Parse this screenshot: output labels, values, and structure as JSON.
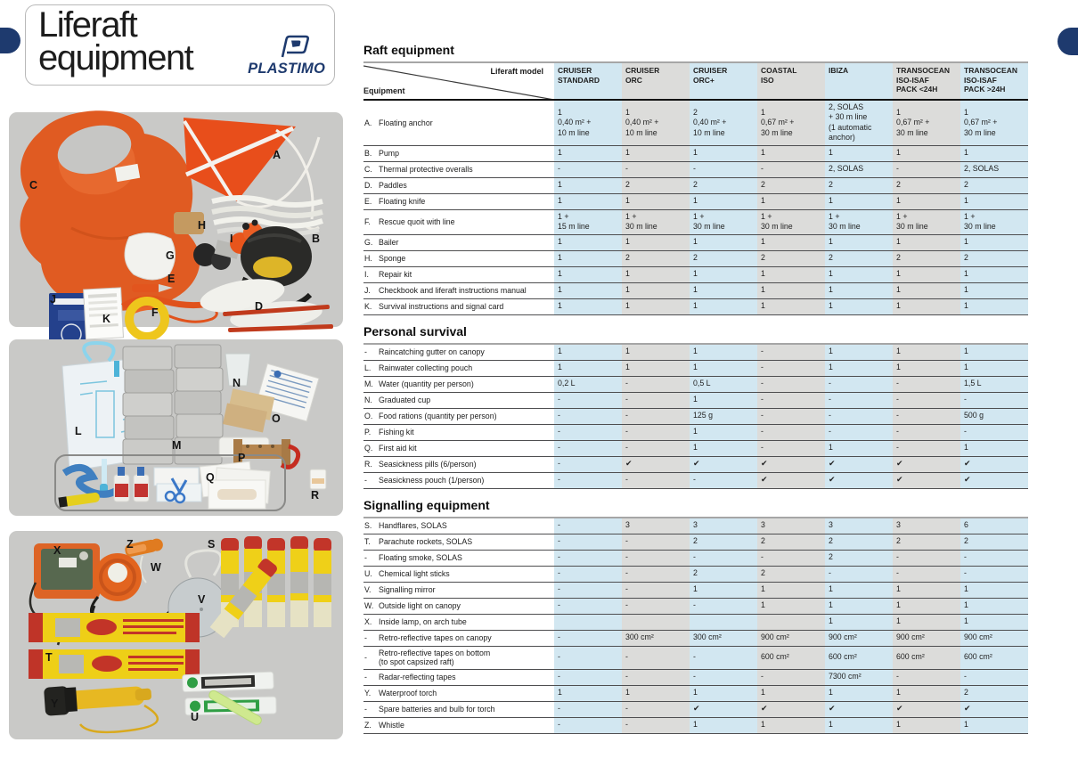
{
  "page": {
    "title_line1": "Liferaft",
    "title_line2": "equipment",
    "brand": "PLASTIMO"
  },
  "colors": {
    "navy": "#1e3a6e",
    "band_blue": "#d2e7f1",
    "band_gray": "#dcdcda",
    "panel_gray": "#c9c9c7"
  },
  "letters": {
    "p1": [
      "C",
      "A",
      "H",
      "G",
      "I",
      "B",
      "E",
      "J",
      "K",
      "F",
      "D"
    ],
    "p2": [
      "L",
      "M",
      "N",
      "O",
      "P",
      "Q",
      "R"
    ],
    "p3": [
      "X",
      "Z",
      "W",
      "V",
      "S",
      "T",
      "Y",
      "U"
    ]
  },
  "table": {
    "corner_top": "Liferaft model",
    "corner_bottom": "Equipment",
    "columns": [
      "CRUISER\nSTANDARD",
      "CRUISER\nORC",
      "CRUISER\nORC+",
      "COASTAL\nISO",
      "IBIZA",
      "TRANSOCEAN\nISO-ISAF\nPACK <24H",
      "TRANSOCEAN\nISO-ISAF\nPACK >24H"
    ],
    "sections": [
      {
        "heading": "Raft equipment",
        "rows": [
          {
            "key": "A.",
            "label": "Floating anchor",
            "values": [
              "1\n0,40 m²  +\n10 m line",
              "1\n0,40 m²  +\n10 m line",
              "2\n0,40 m²  +\n10 m line",
              "1\n0,67 m²  +\n30 m line",
              "2, SOLAS\n+ 30 m line\n(1 automatic anchor)",
              "1\n0,67 m² +\n30 m line",
              "1\n0,67 m² +\n30 m line"
            ]
          },
          {
            "key": "B.",
            "label": "Pump",
            "values": [
              "1",
              "1",
              "1",
              "1",
              "1",
              "1",
              "1"
            ]
          },
          {
            "key": "C.",
            "label": "Thermal protective overalls",
            "values": [
              "-",
              "-",
              "-",
              "-",
              "2, SOLAS",
              "-",
              "2, SOLAS"
            ]
          },
          {
            "key": "D.",
            "label": "Paddles",
            "values": [
              "1",
              "2",
              "2",
              "2",
              "2",
              "2",
              "2"
            ]
          },
          {
            "key": "E.",
            "label": "Floating knife",
            "values": [
              "1",
              "1",
              "1",
              "1",
              "1",
              "1",
              "1"
            ]
          },
          {
            "key": "F.",
            "label": "Rescue quoit with line",
            "values": [
              "1 +\n15 m line",
              "1 +\n30 m line",
              "1 +\n30 m line",
              "1 +\n30 m line",
              "1 +\n30 m line",
              "1 +\n30 m line",
              "1 +\n30 m line"
            ]
          },
          {
            "key": "G.",
            "label": "Bailer",
            "values": [
              "1",
              "1",
              "1",
              "1",
              "1",
              "1",
              "1"
            ]
          },
          {
            "key": "H.",
            "label": "Sponge",
            "values": [
              "1",
              "2",
              "2",
              "2",
              "2",
              "2",
              "2"
            ]
          },
          {
            "key": "I.",
            "label": "Repair kit",
            "values": [
              "1",
              "1",
              "1",
              "1",
              "1",
              "1",
              "1"
            ]
          },
          {
            "key": "J.",
            "label": "Checkbook and liferaft instructions manual",
            "values": [
              "1",
              "1",
              "1",
              "1",
              "1",
              "1",
              "1"
            ]
          },
          {
            "key": "K.",
            "label": "Survival instructions and signal card",
            "values": [
              "1",
              "1",
              "1",
              "1",
              "1",
              "1",
              "1"
            ]
          }
        ]
      },
      {
        "heading": "Personal survival",
        "rows": [
          {
            "key": "-",
            "label": "Raincatching gutter on canopy",
            "values": [
              "1",
              "1",
              "1",
              "-",
              "1",
              "1",
              "1"
            ]
          },
          {
            "key": "L.",
            "label": "Rainwater collecting pouch",
            "values": [
              "1",
              "1",
              "1",
              "-",
              "1",
              "1",
              "1"
            ]
          },
          {
            "key": "M.",
            "label": "Water (quantity per person)",
            "values": [
              "0,2 L",
              "-",
              "0,5 L",
              "-",
              "-",
              "-",
              "1,5 L"
            ]
          },
          {
            "key": "N.",
            "label": "Graduated cup",
            "values": [
              "-",
              "-",
              "1",
              "-",
              "-",
              "-",
              "-"
            ]
          },
          {
            "key": "O.",
            "label": "Food rations (quantity per person)",
            "values": [
              "-",
              "-",
              "125 g",
              "-",
              "-",
              "-",
              "500 g"
            ]
          },
          {
            "key": "P.",
            "label": "Fishing kit",
            "values": [
              "-",
              "-",
              "1",
              "-",
              "-",
              "-",
              "-"
            ]
          },
          {
            "key": "Q.",
            "label": "First aid kit",
            "values": [
              "-",
              "-",
              "1",
              "-",
              "1",
              "-",
              "1"
            ]
          },
          {
            "key": "R.",
            "label": "Seasickness pills (6/person)",
            "values": [
              "-",
              "✔",
              "✔",
              "✔",
              "✔",
              "✔",
              "✔"
            ]
          },
          {
            "key": "-",
            "label": "Seasickness pouch (1/person)",
            "values": [
              "-",
              "-",
              "-",
              "✔",
              "✔",
              "✔",
              "✔"
            ]
          }
        ]
      },
      {
        "heading": "Signalling equipment",
        "rows": [
          {
            "key": "S.",
            "label": "Handflares, SOLAS",
            "values": [
              "-",
              "3",
              "3",
              "3",
              "3",
              "3",
              "6"
            ]
          },
          {
            "key": "T.",
            "label": "Parachute rockets, SOLAS",
            "values": [
              "-",
              "-",
              "2",
              "2",
              "2",
              "2",
              "2"
            ]
          },
          {
            "key": "-",
            "label": "Floating smoke, SOLAS",
            "values": [
              "-",
              "-",
              "-",
              "-",
              "2",
              "-",
              "-"
            ]
          },
          {
            "key": "U.",
            "label": "Chemical light sticks",
            "values": [
              "-",
              "-",
              "2",
              "2",
              "-",
              "-",
              "-"
            ]
          },
          {
            "key": "V.",
            "label": "Signalling mirror",
            "values": [
              "-",
              "-",
              "1",
              "1",
              "1",
              "1",
              "1"
            ]
          },
          {
            "key": "W.",
            "label": "Outside light on canopy",
            "values": [
              "-",
              "-",
              "-",
              "1",
              "1",
              "1",
              "1"
            ]
          },
          {
            "key": "X.",
            "label": "Inside lamp, on arch tube",
            "values": [
              "",
              "",
              "",
              "",
              "1",
              "1",
              "1"
            ]
          },
          {
            "key": "-",
            "label": "Retro-reflective tapes on canopy",
            "values": [
              "-",
              "300 cm²",
              "300 cm²",
              "900 cm²",
              "900 cm²",
              "900 cm²",
              "900 cm²"
            ]
          },
          {
            "key": "-",
            "label": "Retro-reflective tapes on bottom\n(to spot capsized raft)",
            "values": [
              "-",
              "-",
              "-",
              "600 cm²",
              "600 cm²",
              "600 cm²",
              "600 cm²"
            ]
          },
          {
            "key": "-",
            "label": "Radar-reflecting tapes",
            "values": [
              "-",
              "-",
              "-",
              "-",
              "7300 cm²",
              "-",
              "-"
            ]
          },
          {
            "key": "Y.",
            "label": "Waterproof torch",
            "values": [
              "1",
              "1",
              "1",
              "1",
              "1",
              "1",
              "2"
            ]
          },
          {
            "key": "-",
            "label": "Spare batteries and bulb for torch",
            "values": [
              "-",
              "-",
              "✔",
              "✔",
              "✔",
              "✔",
              "✔"
            ]
          },
          {
            "key": "Z.",
            "label": "Whistle",
            "values": [
              "-",
              "-",
              "1",
              "1",
              "1",
              "1",
              "1"
            ]
          }
        ]
      }
    ]
  }
}
